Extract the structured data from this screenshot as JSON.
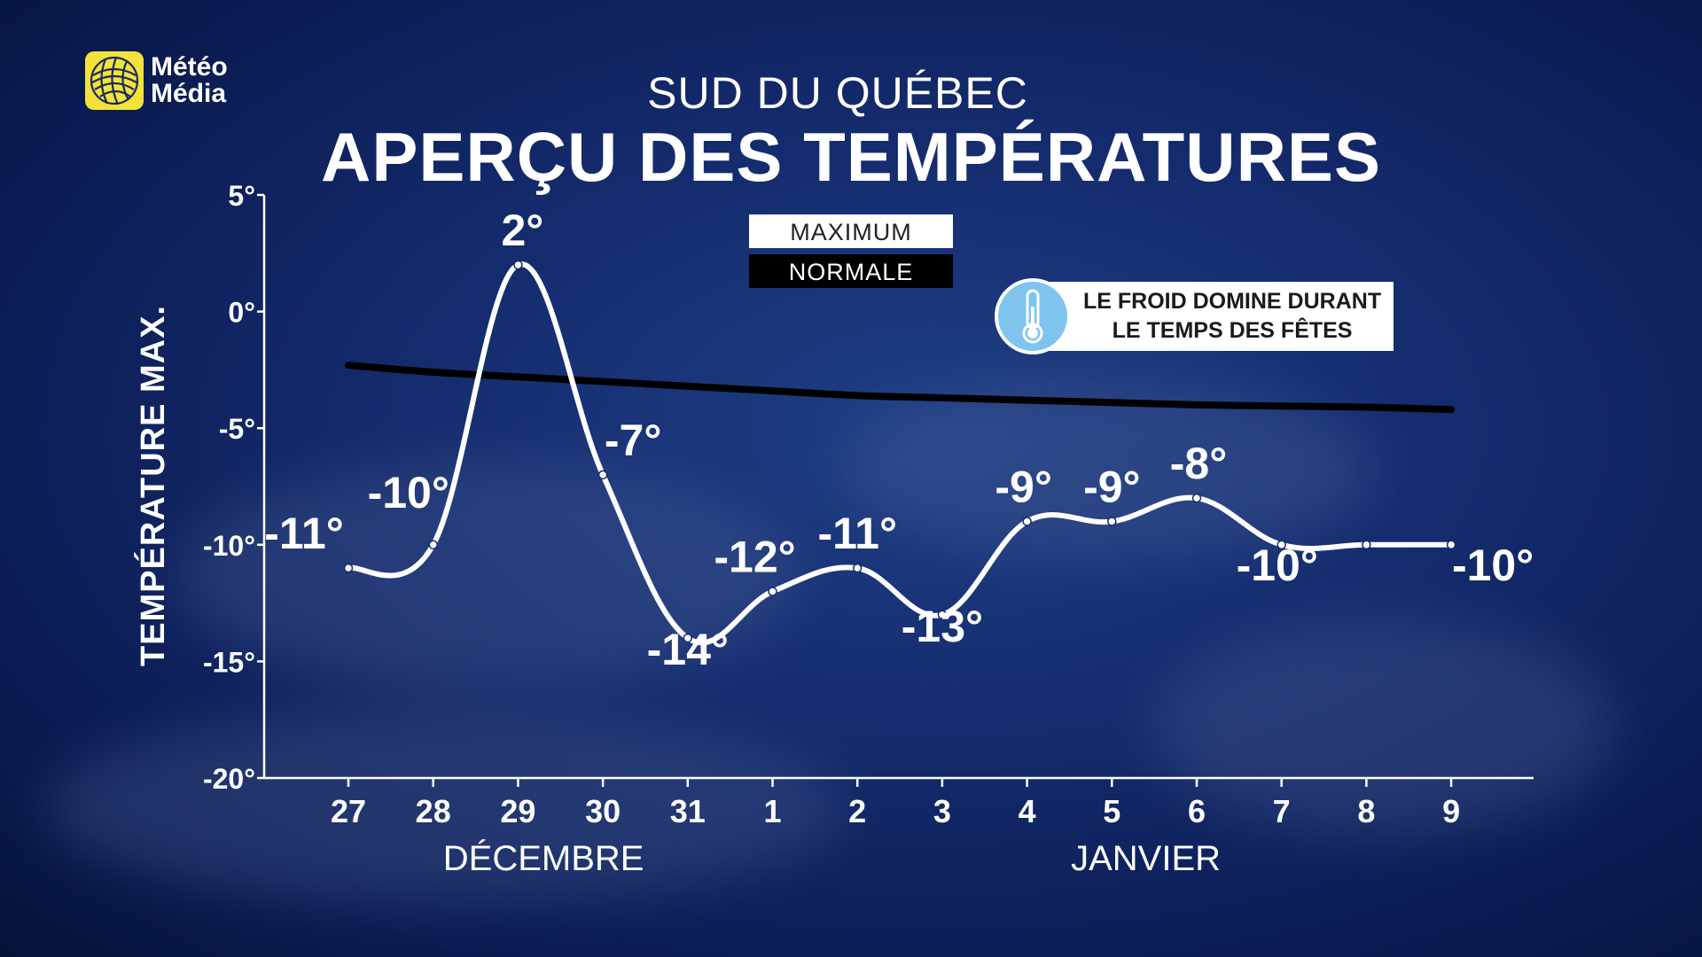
{
  "brand": {
    "line1": "Météo",
    "line2": "Média",
    "colors": {
      "logo": "#f2e23a",
      "background": "#13296a"
    }
  },
  "header": {
    "subtitle": "SUD DU QUÉBEC",
    "title": "APERÇU DES TEMPÉRATURES"
  },
  "legend": {
    "maximum": "MAXIMUM",
    "normale": "NORMALE"
  },
  "callout": {
    "line1": "LE FROID DOMINE DURANT",
    "line2": "LE TEMPS DES FÊTES",
    "icon": "thermometer-icon"
  },
  "chart_data": {
    "type": "line",
    "title": "APERÇU DES TEMPÉRATURES",
    "ylabel": "TEMPÉRATURE MAX.",
    "ylim": [
      -20,
      5
    ],
    "yticks": [
      5,
      0,
      -5,
      -10,
      -15,
      -20
    ],
    "ytick_labels": [
      "5°",
      "0°",
      "-5°",
      "-10°",
      "-15°",
      "-20°"
    ],
    "categories": [
      "27",
      "28",
      "29",
      "30",
      "31",
      "1",
      "2",
      "3",
      "4",
      "5",
      "6",
      "7",
      "8",
      "9"
    ],
    "month_labels": [
      {
        "label": "DÉCEMBRE",
        "center_index": 2.3
      },
      {
        "label": "JANVIER",
        "center_index": 9.4
      }
    ],
    "series": [
      {
        "name": "MAXIMUM",
        "color": "#ffffff",
        "values": [
          -11,
          -10,
          2,
          -7,
          -14,
          -12,
          -11,
          -13,
          -9,
          -9,
          -8,
          -10,
          -10,
          -10
        ],
        "labels": [
          "-11°",
          "-10°",
          "2°",
          "-7°",
          "-14°",
          "-12°",
          "-11°",
          "-13°",
          "-9°",
          "-9°",
          "-8°",
          "-10°",
          null,
          "-10°"
        ]
      },
      {
        "name": "NORMALE",
        "color": "#000000",
        "values": [
          -2.3,
          -2.6,
          -2.8,
          -3.0,
          -3.2,
          -3.4,
          -3.6,
          -3.7,
          -3.8,
          -3.9,
          -4.0,
          -4.05,
          -4.1,
          -4.2
        ]
      }
    ],
    "grid": false
  }
}
